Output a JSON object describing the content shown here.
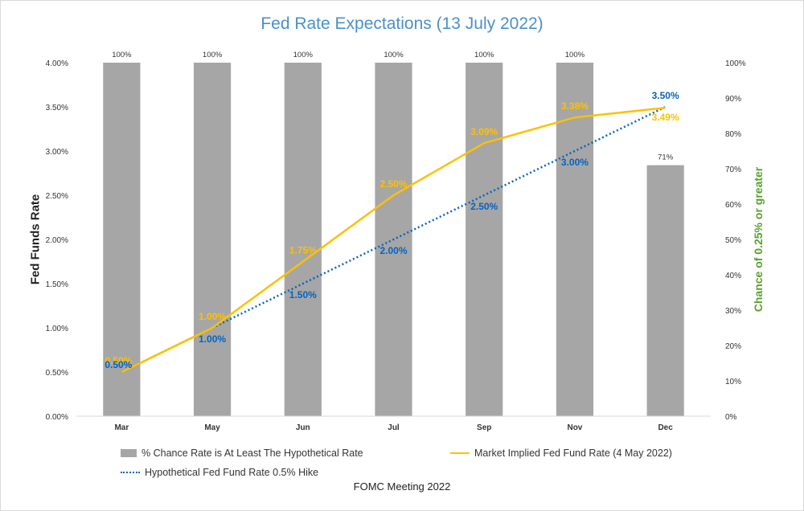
{
  "chart_data": {
    "type": "bar+line",
    "title": "Fed Rate Expectations (13 July 2022)",
    "xlabel": "FOMC Meeting 2022",
    "ylabel": "Fed Funds Rate",
    "y2label": "Chance of 0.25% or greater",
    "categories": [
      "Mar",
      "May",
      "Jun",
      "Jul",
      "Sep",
      "Nov",
      "Dec"
    ],
    "ylim": [
      0,
      4.0
    ],
    "yticks": [
      "0.00%",
      "0.50%",
      "1.00%",
      "1.50%",
      "2.00%",
      "2.50%",
      "3.00%",
      "3.50%",
      "4.00%"
    ],
    "y2lim": [
      0,
      100
    ],
    "y2ticks": [
      "0%",
      "10%",
      "20%",
      "30%",
      "40%",
      "50%",
      "60%",
      "70%",
      "80%",
      "90%",
      "100%"
    ],
    "series": [
      {
        "name": "% Chance Rate is At Least The Hypothetical Rate",
        "kind": "bar",
        "axis": "right",
        "values": [
          100,
          100,
          100,
          100,
          100,
          100,
          71
        ],
        "labels": [
          "100%",
          "100%",
          "100%",
          "100%",
          "100%",
          "100%",
          "71%"
        ],
        "color": "#a6a6a6"
      },
      {
        "name": "Market Implied Fed Fund  Rate (4 May 2022)",
        "kind": "line",
        "axis": "left",
        "values": [
          0.5,
          1.0,
          1.75,
          2.5,
          3.09,
          3.38,
          3.49
        ],
        "labels": [
          "0.50%",
          "1.00%",
          "1.75%",
          "2.50%",
          "3.09%",
          "3.38%",
          "3.49%"
        ],
        "color": "#ffc000"
      },
      {
        "name": "Hypothetical Fed Fund Rate 0.5% Hike",
        "kind": "dotted-line",
        "axis": "left",
        "values": [
          0.5,
          1.0,
          1.5,
          2.0,
          2.5,
          3.0,
          3.5
        ],
        "labels": [
          "0.50%",
          "1.00%",
          "1.50%",
          "2.00%",
          "2.50%",
          "3.00%",
          "3.50%"
        ],
        "color": "#0563c1"
      }
    ]
  }
}
